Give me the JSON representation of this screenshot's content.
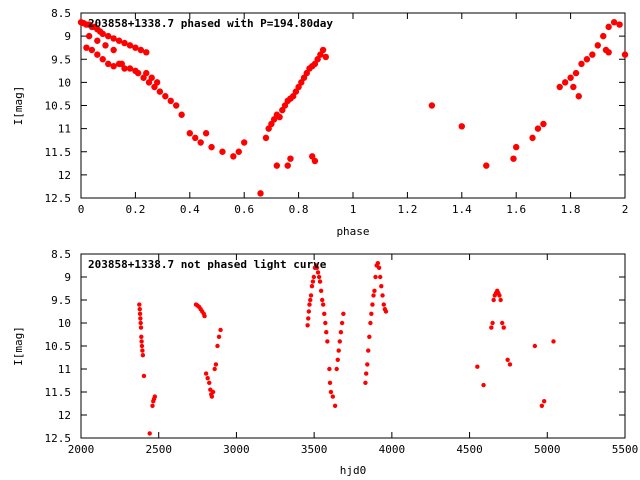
{
  "chart_data": [
    {
      "type": "scatter",
      "title": "203858+1338.7 phased with P=194.80day",
      "xlabel": "phase",
      "ylabel": "I[mag]",
      "xlim": [
        0,
        2
      ],
      "ylim": [
        8.5,
        12.5
      ],
      "y_inverted": true,
      "xticks": [
        "0",
        "0.2",
        "0.4",
        "0.6",
        "0.8",
        "1",
        "1.2",
        "1.4",
        "1.6",
        "1.8",
        "2"
      ],
      "xtick_values": [
        0,
        0.2,
        0.4,
        0.6,
        0.8,
        1,
        1.2,
        1.4,
        1.6,
        1.8,
        2
      ],
      "yticks": [
        "8.5",
        "9",
        "9.5",
        "10",
        "10.5",
        "11",
        "11.5",
        "12",
        "12.5"
      ],
      "ytick_values": [
        8.5,
        9,
        9.5,
        10,
        10.5,
        11,
        11.5,
        12,
        12.5
      ],
      "marker": "filled circle",
      "color": "#ff0000",
      "grid": false,
      "series": [
        {
          "x": [
            0.0,
            0.01,
            0.02,
            0.03,
            0.04,
            0.05,
            0.06,
            0.07,
            0.08,
            0.1,
            0.12,
            0.14,
            0.16,
            0.18,
            0.2,
            0.22,
            0.24,
            0.02,
            0.04,
            0.06,
            0.08,
            0.1,
            0.12,
            0.14,
            0.16,
            0.2,
            0.24,
            0.26,
            0.28,
            0.03,
            0.06,
            0.09,
            0.12,
            0.15,
            0.18,
            0.21,
            0.23,
            0.25,
            0.27,
            0.29,
            0.31,
            0.33,
            0.35,
            0.37,
            0.4,
            0.42,
            0.44,
            0.46,
            0.48,
            0.52,
            0.56,
            0.58,
            0.6,
            0.66,
            0.68,
            0.69,
            0.7,
            0.71,
            0.72,
            0.73,
            0.74,
            0.75,
            0.76,
            0.77,
            0.78,
            0.79,
            0.8,
            0.81,
            0.82,
            0.83,
            0.84,
            0.85,
            0.86,
            0.87,
            0.88,
            0.89,
            0.9,
            0.72,
            0.76,
            0.77,
            0.85,
            0.86,
            1.29,
            1.4,
            1.49,
            1.59,
            1.6,
            1.66,
            1.68,
            1.7,
            1.76,
            1.78,
            1.8,
            1.82,
            1.84,
            1.86,
            1.88,
            1.9,
            1.92,
            1.94,
            1.96,
            1.98,
            2.0,
            1.81,
            1.83,
            1.93,
            1.94
          ],
          "y": [
            8.7,
            8.72,
            8.75,
            8.75,
            8.8,
            8.8,
            8.85,
            8.9,
            8.95,
            9.0,
            9.05,
            9.1,
            9.15,
            9.2,
            9.25,
            9.3,
            9.35,
            9.25,
            9.3,
            9.4,
            9.5,
            9.6,
            9.65,
            9.6,
            9.7,
            9.75,
            9.8,
            9.9,
            10.0,
            9.0,
            9.1,
            9.2,
            9.3,
            9.6,
            9.7,
            9.8,
            9.9,
            10.0,
            10.1,
            10.2,
            10.3,
            10.4,
            10.5,
            10.7,
            11.1,
            11.2,
            11.3,
            11.1,
            11.4,
            11.5,
            11.6,
            11.5,
            11.3,
            12.4,
            11.2,
            11.0,
            10.9,
            10.8,
            10.7,
            10.75,
            10.6,
            10.5,
            10.4,
            10.35,
            10.3,
            10.2,
            10.1,
            10.0,
            9.9,
            9.8,
            9.7,
            9.65,
            9.6,
            9.5,
            9.4,
            9.3,
            9.45,
            11.8,
            11.8,
            11.65,
            11.6,
            11.7,
            10.5,
            10.95,
            11.8,
            11.65,
            11.4,
            11.2,
            11.0,
            10.9,
            10.1,
            10.0,
            9.9,
            9.8,
            9.6,
            9.5,
            9.4,
            9.2,
            9.0,
            8.8,
            8.7,
            8.75,
            9.4,
            10.1,
            10.3,
            9.3,
            9.35
          ]
        }
      ]
    },
    {
      "type": "scatter",
      "title": "203858+1338.7 not phased light curve",
      "xlabel": "hjd0",
      "ylabel": "I[mag]",
      "xlim": [
        2000,
        5500
      ],
      "ylim": [
        8.5,
        12.5
      ],
      "y_inverted": true,
      "xticks": [
        "2000",
        "2500",
        "3000",
        "3500",
        "4000",
        "4500",
        "5000",
        "5500"
      ],
      "xtick_values": [
        2000,
        2500,
        3000,
        3500,
        4000,
        4500,
        5000,
        5500
      ],
      "yticks": [
        "8.5",
        "9",
        "9.5",
        "10",
        "10.5",
        "11",
        "11.5",
        "12",
        "12.5"
      ],
      "ytick_values": [
        8.5,
        9,
        9.5,
        10,
        10.5,
        11,
        11.5,
        12,
        12.5
      ],
      "marker": "small filled circle",
      "color": "#ff0000",
      "grid": false,
      "series": [
        {
          "x": [
            2375,
            2378,
            2380,
            2382,
            2384,
            2386,
            2388,
            2390,
            2392,
            2395,
            2398,
            2405,
            2442,
            2460,
            2465,
            2470,
            2475,
            2740,
            2750,
            2760,
            2770,
            2780,
            2790,
            2795,
            2805,
            2815,
            2825,
            2832,
            2838,
            2842,
            2850,
            2860,
            2868,
            2878,
            2888,
            2898,
            3458,
            3462,
            3466,
            3470,
            3475,
            3480,
            3486,
            3492,
            3498,
            3505,
            3512,
            3518,
            3525,
            3532,
            3538,
            3545,
            3552,
            3558,
            3565,
            3572,
            3578,
            3585,
            3598,
            3602,
            3608,
            3620,
            3635,
            3645,
            3652,
            3658,
            3665,
            3672,
            3680,
            3688,
            3830,
            3835,
            3842,
            3848,
            3855,
            3862,
            3868,
            3875,
            3882,
            3888,
            3895,
            3902,
            3910,
            3918,
            3925,
            3932,
            3940,
            3948,
            3955,
            3962,
            4550,
            4590,
            4640,
            4648,
            4655,
            4662,
            4670,
            4678,
            4685,
            4692,
            4700,
            4710,
            4720,
            4745,
            4760,
            4920,
            4965,
            4980,
            5040
          ],
          "y": [
            9.6,
            9.7,
            9.8,
            9.9,
            10.0,
            10.1,
            10.3,
            10.4,
            10.5,
            10.6,
            10.7,
            11.15,
            12.4,
            11.8,
            11.7,
            11.65,
            11.6,
            9.6,
            9.62,
            9.65,
            9.7,
            9.75,
            9.8,
            9.85,
            11.1,
            11.2,
            11.3,
            11.45,
            11.55,
            11.6,
            11.5,
            11.0,
            10.9,
            10.5,
            10.3,
            10.15,
            10.05,
            9.9,
            9.75,
            9.6,
            9.5,
            9.4,
            9.2,
            9.1,
            9.0,
            8.8,
            8.75,
            8.8,
            8.9,
            9.0,
            9.1,
            9.3,
            9.5,
            9.6,
            9.8,
            10.0,
            10.2,
            10.4,
            11.0,
            11.3,
            11.5,
            11.6,
            11.8,
            11.0,
            10.8,
            10.6,
            10.4,
            10.2,
            10.0,
            9.8,
            11.3,
            11.1,
            10.9,
            10.6,
            10.3,
            10.0,
            9.8,
            9.6,
            9.4,
            9.3,
            9.0,
            8.75,
            8.7,
            8.8,
            9.0,
            9.2,
            9.4,
            9.6,
            9.7,
            9.75,
            10.95,
            11.35,
            10.1,
            10.0,
            9.5,
            9.4,
            9.35,
            9.3,
            9.35,
            9.4,
            9.5,
            10.0,
            10.1,
            10.8,
            10.9,
            10.5,
            11.8,
            11.7,
            10.4
          ]
        }
      ]
    }
  ]
}
